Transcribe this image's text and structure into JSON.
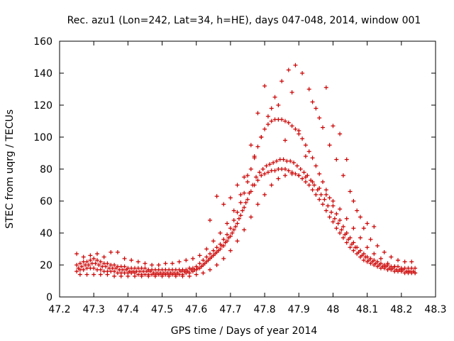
{
  "chart_data": {
    "type": "scatter",
    "title": "Rec. azu1 (Lon=242, Lat=34, h=HE), days 047-048, 2014, window 001",
    "xlabel": "GPS time / Days of year 2014",
    "ylabel": "STEC from uqrg / TECUs",
    "xlim": [
      47.2,
      48.3
    ],
    "ylim": [
      0,
      160
    ],
    "xticks": [
      "47.2",
      "47.3",
      "47.4",
      "47.5",
      "47.6",
      "47.7",
      "47.8",
      "47.9",
      "48",
      "48.1",
      "48.2",
      "48.3"
    ],
    "yticks": [
      "0",
      "20",
      "40",
      "60",
      "80",
      "100",
      "120",
      "140",
      "160"
    ],
    "grid": false,
    "marker": "plus",
    "color": "#cc0000",
    "series": [
      {
        "x": [
          47.25,
          47.26,
          47.27,
          47.28,
          47.29,
          47.3,
          47.31,
          47.32,
          47.33,
          47.34,
          47.35,
          47.36,
          47.37,
          47.38,
          47.39,
          47.4,
          47.41,
          47.42,
          47.43,
          47.44,
          47.45,
          47.46,
          47.47,
          47.48,
          47.49,
          47.5,
          47.51,
          47.52,
          47.53,
          47.54,
          47.55,
          47.56,
          47.57,
          47.58,
          47.59,
          47.6,
          47.61,
          47.62,
          47.63,
          47.64,
          47.65,
          47.66,
          47.67,
          47.68,
          47.69,
          47.7,
          47.71,
          47.72,
          47.73,
          47.74,
          47.75,
          47.76,
          47.77,
          47.78,
          47.79,
          47.8,
          47.81,
          47.82,
          47.83,
          47.84,
          47.85,
          47.86,
          47.87,
          47.88,
          47.89,
          47.9,
          47.91,
          47.92,
          47.93,
          47.94,
          47.95,
          47.96,
          47.97,
          47.98,
          47.99,
          48.0,
          48.01,
          48.02,
          48.03,
          48.04,
          48.05,
          48.06,
          48.07,
          48.08,
          48.09,
          48.1,
          48.11,
          48.12,
          48.13,
          48.14,
          48.15,
          48.16,
          48.17,
          48.18,
          48.19,
          48.2,
          48.21,
          48.22,
          48.23,
          48.24
        ],
        "y": [
          20,
          21,
          22,
          22,
          23,
          24,
          23,
          22,
          21,
          21,
          20,
          20,
          19,
          19,
          19,
          18,
          18,
          18,
          18,
          18,
          18,
          17,
          17,
          17,
          17,
          17,
          17,
          17,
          17,
          17,
          17,
          17,
          17,
          18,
          18,
          19,
          21,
          23,
          25,
          27,
          29,
          31,
          33,
          36,
          39,
          43,
          48,
          53,
          59,
          65,
          72,
          80,
          87,
          94,
          100,
          105,
          108,
          110,
          111,
          111,
          111,
          110,
          109,
          107,
          105,
          102,
          99,
          95,
          91,
          87,
          82,
          77,
          72,
          67,
          62,
          57,
          52,
          48,
          44,
          40,
          37,
          34,
          31,
          29,
          27,
          25,
          24,
          23,
          22,
          21,
          20,
          20,
          19,
          19,
          19,
          18,
          18,
          18,
          18,
          18
        ]
      },
      {
        "x": [
          47.25,
          47.26,
          47.27,
          47.28,
          47.29,
          47.3,
          47.31,
          47.32,
          47.33,
          47.34,
          47.35,
          47.36,
          47.37,
          47.38,
          47.39,
          47.4,
          47.41,
          47.42,
          47.43,
          47.44,
          47.45,
          47.46,
          47.47,
          47.48,
          47.49,
          47.5,
          47.51,
          47.52,
          47.53,
          47.54,
          47.55,
          47.56,
          47.57,
          47.58,
          47.59,
          47.6,
          47.61,
          47.62,
          47.63,
          47.64,
          47.65,
          47.66,
          47.67,
          47.68,
          47.69,
          47.7,
          47.71,
          47.72,
          47.73,
          47.74,
          47.75,
          47.76,
          47.77,
          47.78,
          47.79,
          47.8,
          47.81,
          47.82,
          47.83,
          47.84,
          47.85,
          47.86,
          47.87,
          47.88,
          47.89,
          47.9,
          47.91,
          47.92,
          47.93,
          47.94,
          47.95,
          47.96,
          47.97,
          47.98,
          47.99,
          48.0,
          48.01,
          48.02,
          48.03,
          48.04,
          48.05,
          48.06,
          48.07,
          48.08,
          48.09,
          48.1,
          48.11,
          48.12,
          48.13,
          48.14,
          48.15,
          48.16,
          48.17,
          48.18,
          48.19,
          48.2,
          48.21,
          48.22,
          48.23,
          48.24
        ],
        "y": [
          16,
          17,
          17,
          18,
          18,
          18,
          17,
          17,
          16,
          16,
          16,
          16,
          15,
          15,
          15,
          15,
          15,
          15,
          14,
          14,
          14,
          14,
          14,
          14,
          14,
          14,
          14,
          14,
          14,
          14,
          14,
          14,
          15,
          15,
          16,
          17,
          18,
          20,
          22,
          24,
          26,
          28,
          30,
          32,
          35,
          38,
          42,
          46,
          51,
          56,
          61,
          66,
          70,
          73,
          76,
          77,
          78,
          79,
          79,
          80,
          80,
          80,
          79,
          78,
          77,
          76,
          74,
          72,
          70,
          67,
          64,
          61,
          58,
          54,
          50,
          47,
          43,
          40,
          37,
          34,
          31,
          29,
          27,
          25,
          23,
          22,
          21,
          20,
          19,
          18,
          18,
          17,
          17,
          16,
          16,
          16,
          15,
          15,
          15,
          15
        ]
      },
      {
        "x": [
          47.255,
          47.265,
          47.275,
          47.285,
          47.295,
          47.305,
          47.315,
          47.325,
          47.335,
          47.345,
          47.355,
          47.365,
          47.375,
          47.385,
          47.395,
          47.405,
          47.415,
          47.425,
          47.435,
          47.445,
          47.455,
          47.465,
          47.475,
          47.485,
          47.495,
          47.505,
          47.515,
          47.525,
          47.535,
          47.545,
          47.555,
          47.565,
          47.575,
          47.585,
          47.595,
          47.605,
          47.615,
          47.625,
          47.635,
          47.645,
          47.655,
          47.665,
          47.675,
          47.685,
          47.695,
          47.705,
          47.715,
          47.725,
          47.735,
          47.745,
          47.755,
          47.765,
          47.775,
          47.785,
          47.795,
          47.805,
          47.815,
          47.825,
          47.835,
          47.845,
          47.855,
          47.865,
          47.875,
          47.885,
          47.895,
          47.905,
          47.915,
          47.925,
          47.935,
          47.945,
          47.955,
          47.965,
          47.975,
          47.985,
          47.995,
          48.005,
          48.015,
          48.025,
          48.035,
          48.045,
          48.055,
          48.065,
          48.075,
          48.085,
          48.095,
          48.105,
          48.115,
          48.125,
          48.135,
          48.145,
          48.155,
          48.165,
          48.175,
          48.185,
          48.195,
          48.205,
          48.215,
          48.225,
          48.235
        ],
        "y": [
          18,
          19,
          20,
          20,
          21,
          21,
          20,
          19,
          19,
          18,
          18,
          18,
          17,
          17,
          17,
          16,
          16,
          16,
          16,
          16,
          16,
          16,
          15,
          15,
          15,
          15,
          15,
          15,
          15,
          15,
          16,
          16,
          16,
          17,
          17,
          18,
          19,
          21,
          23,
          25,
          27,
          29,
          32,
          34,
          37,
          40,
          44,
          49,
          54,
          59,
          65,
          70,
          75,
          78,
          80,
          82,
          83,
          84,
          85,
          86,
          86,
          85,
          85,
          84,
          82,
          80,
          78,
          76,
          73,
          70,
          67,
          64,
          61,
          57,
          53,
          49,
          46,
          42,
          39,
          36,
          33,
          31,
          28,
          26,
          25,
          23,
          22,
          21,
          20,
          19,
          19,
          18,
          18,
          17,
          17,
          17,
          16,
          16,
          16
        ]
      },
      {
        "x": [
          47.25,
          47.27,
          47.29,
          47.31,
          47.33,
          47.35,
          47.37,
          47.39,
          47.41,
          47.43,
          47.45,
          47.47,
          47.49,
          47.51,
          47.53,
          47.55,
          47.57,
          47.59,
          47.61,
          47.63,
          47.65,
          47.67,
          47.69,
          47.71,
          47.73,
          47.75,
          47.77,
          47.79,
          47.81,
          47.83,
          47.85,
          47.87,
          47.89,
          47.91,
          47.93,
          47.95,
          47.97,
          47.99,
          48.01,
          48.03,
          48.05,
          48.07,
          48.09,
          48.11,
          48.13,
          48.15,
          48.17,
          48.19,
          48.21,
          48.23
        ],
        "y": [
          27,
          25,
          26,
          27,
          25,
          28,
          28,
          24,
          23,
          22,
          21,
          20,
          20,
          21,
          21,
          22,
          23,
          24,
          26,
          30,
          35,
          40,
          46,
          54,
          64,
          76,
          88,
          100,
          113,
          125,
          135,
          142,
          145,
          140,
          130,
          118,
          106,
          95,
          86,
          76,
          66,
          54,
          43,
          36,
          32,
          28,
          25,
          23,
          22,
          22
        ]
      },
      {
        "x": [
          47.26,
          47.28,
          47.3,
          47.32,
          47.34,
          47.36,
          47.38,
          47.4,
          47.42,
          47.44,
          47.46,
          47.48,
          47.5,
          47.52,
          47.54,
          47.56,
          47.58,
          47.6,
          47.62,
          47.64,
          47.66,
          47.68,
          47.7,
          47.72,
          47.74,
          47.76,
          47.78,
          47.8,
          47.82,
          47.84,
          47.86,
          47.88,
          47.9,
          47.92,
          47.94,
          47.96,
          47.98,
          48.0,
          48.02,
          48.04,
          48.06,
          48.08,
          48.1,
          48.12,
          48.14,
          48.16,
          48.18,
          48.2,
          48.22,
          48.24
        ],
        "y": [
          14,
          14,
          14,
          14,
          14,
          13,
          13,
          13,
          13,
          13,
          13,
          13,
          13,
          13,
          13,
          13,
          13,
          14,
          15,
          17,
          20,
          24,
          29,
          35,
          42,
          50,
          58,
          64,
          70,
          74,
          76,
          77,
          76,
          75,
          72,
          68,
          64,
          60,
          55,
          49,
          43,
          37,
          31,
          27,
          24,
          21,
          19,
          17,
          16,
          15
        ]
      },
      {
        "x": [
          47.64,
          47.66,
          47.68,
          47.7,
          47.72,
          47.74,
          47.76,
          47.78,
          47.8,
          47.82,
          47.84,
          47.86,
          47.88,
          47.9,
          47.92,
          47.94,
          47.96,
          47.98,
          48.0,
          48.02,
          48.04,
          48.06,
          48.08,
          48.1,
          48.12
        ],
        "y": [
          48,
          63,
          58,
          62,
          70,
          75,
          95,
          115,
          132,
          118,
          120,
          98,
          128,
          104,
          88,
          122,
          112,
          131,
          107,
          102,
          86,
          60,
          50,
          46,
          44
        ]
      }
    ]
  }
}
